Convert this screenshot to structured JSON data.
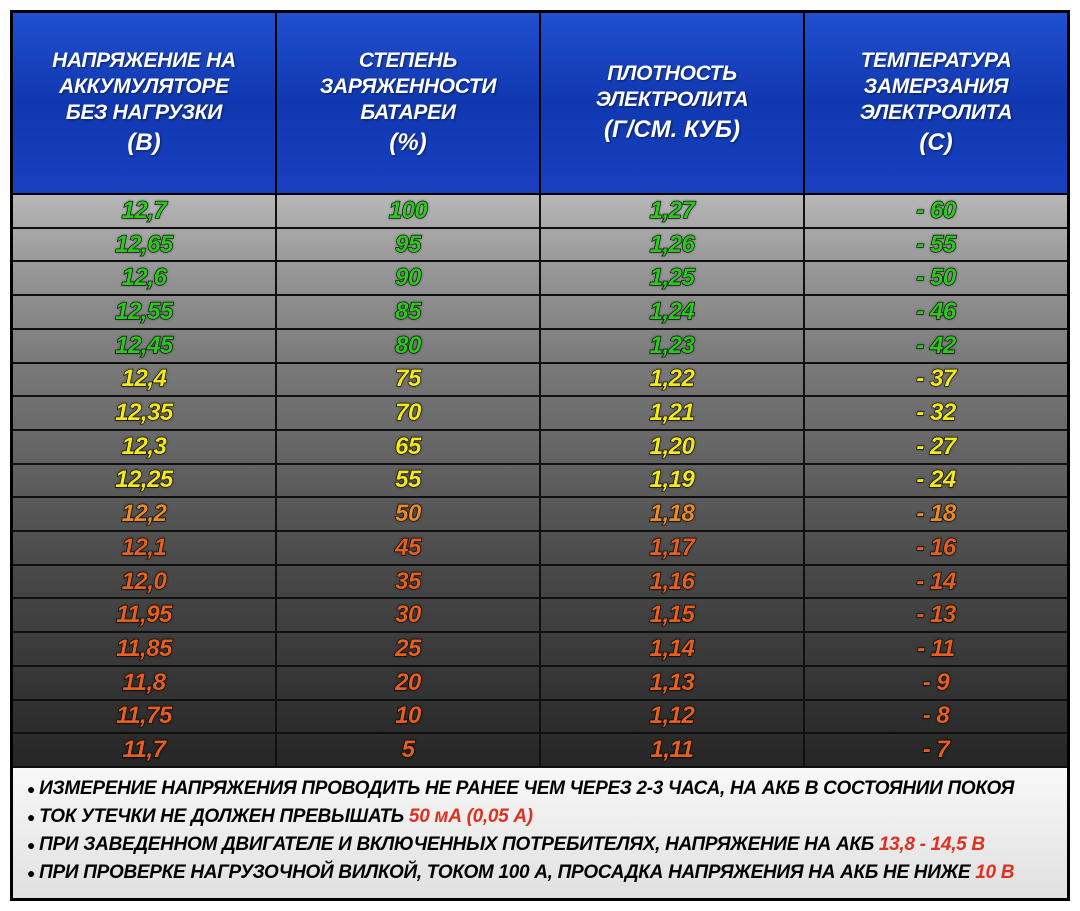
{
  "headers": [
    {
      "lines": [
        "НАПРЯЖЕНИЕ НА",
        "АККУМУЛЯТОРЕ",
        "БЕЗ НАГРУЗКИ"
      ],
      "unit": "(В)"
    },
    {
      "lines": [
        "СТЕПЕНЬ",
        "ЗАРЯЖЕННОСТИ",
        "БАТАРЕИ"
      ],
      "unit": "(%)"
    },
    {
      "lines": [
        "ПЛОТНОСТЬ",
        "ЭЛЕКТРОЛИТА"
      ],
      "unit": "(Г/СМ. КУБ)"
    },
    {
      "lines": [
        "ТЕМПЕРАТУРА",
        "ЗАМЕРЗАНИЯ",
        "ЭЛЕКТРОЛИТА"
      ],
      "unit": "(С)"
    }
  ],
  "colors": {
    "green": "#2ec720",
    "yellow": "#f5e818",
    "orange": "#e88b28",
    "dorange": "#e46020"
  },
  "row_gradients": [
    [
      "#b8b8b8",
      "#a8a8a8"
    ],
    [
      "#a8a8a8",
      "#9a9a9a"
    ],
    [
      "#9a9a9a",
      "#8e8e8e"
    ],
    [
      "#8e8e8e",
      "#848484"
    ],
    [
      "#848484",
      "#7a7a7a"
    ],
    [
      "#7a7a7a",
      "#727272"
    ],
    [
      "#727272",
      "#6a6a6a"
    ],
    [
      "#6a6a6a",
      "#626262"
    ],
    [
      "#626262",
      "#5a5a5a"
    ],
    [
      "#5a5a5a",
      "#525252"
    ],
    [
      "#525252",
      "#4a4a4a"
    ],
    [
      "#4a4a4a",
      "#444444"
    ],
    [
      "#444444",
      "#3e3e3e"
    ],
    [
      "#3e3e3e",
      "#383838"
    ],
    [
      "#383838",
      "#323232"
    ],
    [
      "#323232",
      "#2c2c2c"
    ],
    [
      "#2c2c2c",
      "#262626"
    ],
    [
      "#262626",
      "#202020"
    ]
  ],
  "rows": [
    {
      "v": [
        "12,7",
        "100",
        "1,27",
        "- 60"
      ],
      "c": "green"
    },
    {
      "v": [
        "12,65",
        "95",
        "1,26",
        "- 55"
      ],
      "c": "green"
    },
    {
      "v": [
        "12,6",
        "90",
        "1,25",
        "- 50"
      ],
      "c": "green"
    },
    {
      "v": [
        "12,55",
        "85",
        "1,24",
        "- 46"
      ],
      "c": "green"
    },
    {
      "v": [
        "12,45",
        "80",
        "1,23",
        "- 42"
      ],
      "c": "green"
    },
    {
      "v": [
        "12,4",
        "75",
        "1,22",
        "- 37"
      ],
      "c": "yellow"
    },
    {
      "v": [
        "12,35",
        "70",
        "1,21",
        "- 32"
      ],
      "c": "yellow"
    },
    {
      "v": [
        "12,3",
        "65",
        "1,20",
        "- 27"
      ],
      "c": "yellow"
    },
    {
      "v": [
        "12,25",
        "55",
        "1,19",
        "- 24"
      ],
      "c": "yellow"
    },
    {
      "v": [
        "12,2",
        "50",
        "1,18",
        "- 18"
      ],
      "c": "orange"
    },
    {
      "v": [
        "12,1",
        "45",
        "1,17",
        "- 16"
      ],
      "c": "dorange"
    },
    {
      "v": [
        "12,0",
        "35",
        "1,16",
        "- 14"
      ],
      "c": "dorange"
    },
    {
      "v": [
        "11,95",
        "30",
        "1,15",
        "- 13"
      ],
      "c": "dorange"
    },
    {
      "v": [
        "11,85",
        "25",
        "1,14",
        "- 11"
      ],
      "c": "dorange"
    },
    {
      "v": [
        "11,8",
        "20",
        "1,13",
        "- 9"
      ],
      "c": "dorange"
    },
    {
      "v": [
        "11,75",
        "10",
        "1,12",
        "- 8"
      ],
      "c": "dorange"
    },
    {
      "v": [
        "11,7",
        "5",
        "1,11",
        "- 7"
      ],
      "c": "dorange"
    }
  ],
  "footer": [
    {
      "parts": [
        {
          "t": "ИЗМЕРЕНИЕ НАПРЯЖЕНИЯ ПРОВОДИТЬ НЕ РАНЕЕ ЧЕМ ЧЕРЕЗ 2-3  ЧАСА, НА АКБ В СОСТОЯНИИ ПОКОЯ",
          "red": false
        }
      ]
    },
    {
      "parts": [
        {
          "t": "ТОК УТЕЧКИ НЕ ДОЛЖЕН ПРЕВЫШАТЬ ",
          "red": false
        },
        {
          "t": "50 мА (0,05 А)",
          "red": true
        }
      ]
    },
    {
      "parts": [
        {
          "t": "ПРИ ЗАВЕДЕННОМ ДВИГАТЕЛЕ И ВКЛЮЧЕННЫХ ПОТРЕБИТЕЛЯХ, НАПРЯЖЕНИЕ НА АКБ  ",
          "red": false
        },
        {
          "t": "13,8 - 14,5 В",
          "red": true
        }
      ]
    },
    {
      "parts": [
        {
          "t": "ПРИ ПРОВЕРКЕ НАГРУЗОЧНОЙ ВИЛКОЙ, ТОКОМ 100 А, ПРОСАДКА НАПРЯЖЕНИЯ НА АКБ НЕ НИЖЕ ",
          "red": false
        },
        {
          "t": "10 В",
          "red": true
        }
      ]
    }
  ]
}
